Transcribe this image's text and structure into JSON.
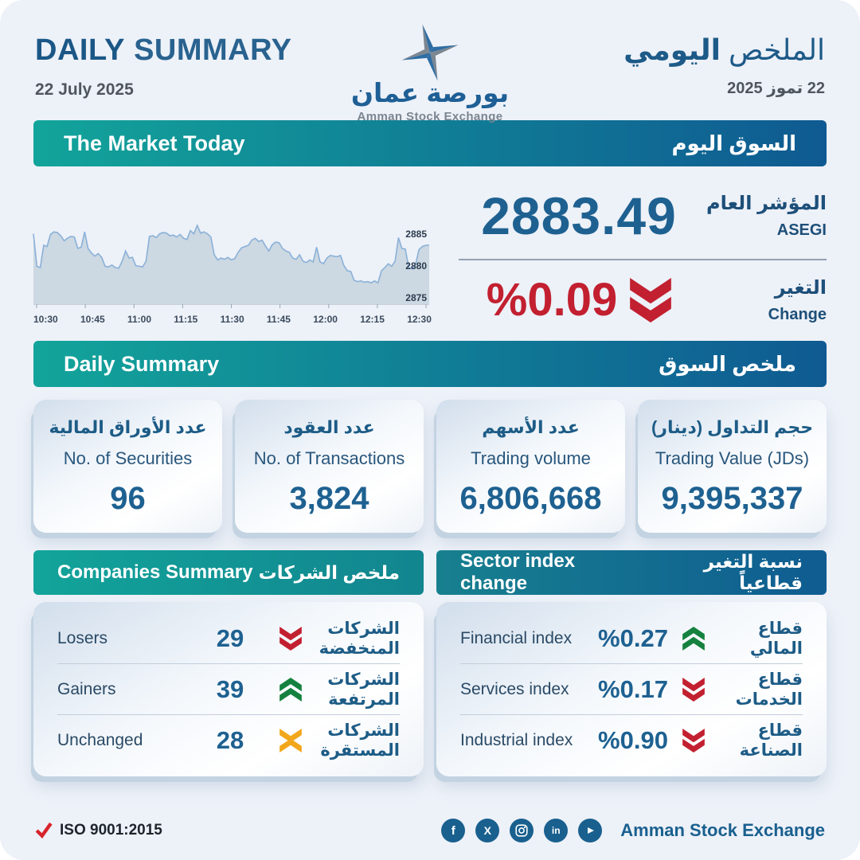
{
  "header": {
    "title_en_bold": "DAILY",
    "title_en_rest": "SUMMARY",
    "date_en": "22 July 2025",
    "title_ar_regular": "الملخص",
    "title_ar_bold": "اليومي",
    "date_ar": "22 تموز 2025",
    "logo_ar": "بورصة عمان",
    "logo_en": "Amman Stock Exchange"
  },
  "market_today": {
    "banner_en": "The Market Today",
    "banner_ar": "السوق اليوم",
    "index_value": "2883.49",
    "index_label_ar": "المؤشر العام",
    "index_label_en": "ASEGI",
    "change_value": "%0.09",
    "change_direction": "down",
    "change_label_ar": "التغير",
    "change_label_en": "Change"
  },
  "chart_data": {
    "type": "area",
    "title": "ASEGI intraday index",
    "x_ticks": [
      "10:30",
      "10:45",
      "11:00",
      "11:15",
      "11:30",
      "11:45",
      "12:00",
      "12:15",
      "12:30"
    ],
    "y_ticks": [
      "2885",
      "2880",
      "2875"
    ],
    "ylim": [
      2874,
      2888
    ],
    "grid": false,
    "legend": "none",
    "values": [
      2885.3,
      2880.2,
      2880.0,
      2883.5,
      2883.3,
      2885.2,
      2885.6,
      2885.5,
      2885.0,
      2884.2,
      2884.6,
      2884.9,
      2884.8,
      2883.0,
      2883.2,
      2885.6,
      2883.0,
      2882.3,
      2881.8,
      2882.2,
      2881.6,
      2880.2,
      2880.1,
      2880.4,
      2880.0,
      2879.9,
      2881.0,
      2882.6,
      2881.5,
      2881.6,
      2880.3,
      2880.2,
      2880.1,
      2881.0,
      2884.9,
      2885.0,
      2884.7,
      2885.3,
      2885.5,
      2885.4,
      2885.0,
      2885.1,
      2884.8,
      2885.2,
      2884.6,
      2884.4,
      2885.8,
      2885.3,
      2886.6,
      2885.4,
      2885.6,
      2885.3,
      2884.8,
      2882.0,
      2881.2,
      2881.5,
      2881.3,
      2881.6,
      2881.2,
      2881.4,
      2882.4,
      2883.1,
      2883.3,
      2883.5,
      2884.3,
      2884.6,
      2884.1,
      2884.3,
      2883.4,
      2882.6,
      2883.6,
      2884.0,
      2883.9,
      2883.0,
      2882.6,
      2882.4,
      2881.5,
      2881.3,
      2882.0,
      2881.0,
      2880.8,
      2881.2,
      2880.9,
      2883.2,
      2880.9,
      2880.6,
      2881.5,
      2881.9,
      2881.8,
      2881.7,
      2881.9,
      2880.3,
      2879.5,
      2879.4,
      2878.0,
      2877.8,
      2877.9,
      2877.7,
      2877.8,
      2877.6,
      2877.9,
      2877.6,
      2879.5,
      2880.0,
      2880.6,
      2880.2,
      2881.0,
      2884.7,
      2883.0,
      2882.9,
      2880.0,
      2879.8,
      2880.5,
      2882.8,
      2883.3,
      2883.5,
      2883.5
    ]
  },
  "daily_summary": {
    "banner_en": "Daily Summary",
    "banner_ar": "ملخص السوق",
    "cards": [
      {
        "ar": "عدد الأوراق المالية",
        "en": "No. of Securities",
        "value": "96"
      },
      {
        "ar": "عدد العقود",
        "en": "No. of Transactions",
        "value": "3,824"
      },
      {
        "ar": "عدد الأسهم",
        "en": "Trading volume",
        "value": "6,806,668"
      },
      {
        "ar": "حجم التداول (دينار)",
        "en": "Trading Value (JDs)",
        "value": "9,395,337"
      }
    ]
  },
  "companies": {
    "banner_en": "Companies Summary",
    "banner_ar": "ملخص الشركات",
    "rows": [
      {
        "en": "Losers",
        "value": "29",
        "direction": "down",
        "ar": "الشركات المنخفضة"
      },
      {
        "en": "Gainers",
        "value": "39",
        "direction": "up",
        "ar": "الشركات المرتفعة"
      },
      {
        "en": "Unchanged",
        "value": "28",
        "direction": "flat",
        "ar": "الشركات المستقرة"
      }
    ]
  },
  "sectors": {
    "banner_en": "Sector index change",
    "banner_ar": "نسبة التغير قطاعياً",
    "rows": [
      {
        "en": "Financial index",
        "value": "%0.27",
        "direction": "up",
        "ar": "قطاع المالي"
      },
      {
        "en": "Services index",
        "value": "%0.17",
        "direction": "down",
        "ar": "قطاع الخدمات"
      },
      {
        "en": "Industrial index",
        "value": "%0.90",
        "direction": "down",
        "ar": "قطاع الصناعة"
      }
    ]
  },
  "footer": {
    "iso": "ISO 9001:2015",
    "brand": "Amman Stock Exchange",
    "socials": [
      "facebook",
      "x-twitter",
      "instagram",
      "linkedin",
      "youtube"
    ]
  },
  "colors": {
    "background": "#edf1f8",
    "banner_teal": "#12a49a",
    "banner_blue": "#0f5a92",
    "value_blue": "#1e6191",
    "label_blue": "#1d5c86",
    "negative_red": "#c22030",
    "positive_green": "#15813f",
    "unchanged_amber": "#f2a71b",
    "chart_line": "#8ab1d8",
    "chart_fill": "#ccd8e2"
  }
}
